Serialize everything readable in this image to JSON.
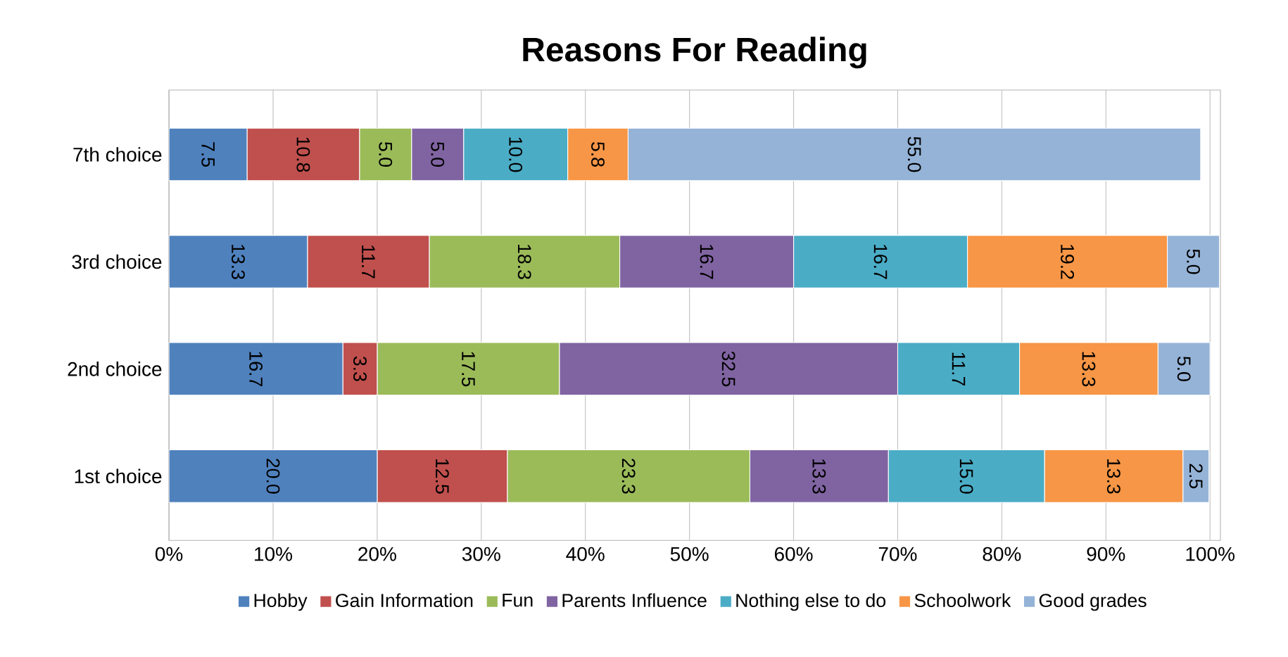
{
  "chart_data": {
    "type": "bar",
    "orientation": "horizontal",
    "stacked": true,
    "title": "Reasons For Reading",
    "categories": [
      "7th choice",
      "3rd choice",
      "2nd choice",
      "1st choice"
    ],
    "series": [
      {
        "name": "Hobby",
        "color": "#4f81bd",
        "values": [
          7.5,
          13.3,
          16.7,
          20.0
        ],
        "value_labels": [
          "7.5",
          "13.3",
          "16.7",
          "20.0"
        ]
      },
      {
        "name": "Gain Information",
        "color": "#c0504d",
        "values": [
          10.8,
          11.7,
          3.3,
          12.5
        ],
        "value_labels": [
          "10.8",
          "11.7",
          "3.3",
          "12.5"
        ]
      },
      {
        "name": "Fun",
        "color": "#9bbb59",
        "values": [
          5.0,
          18.3,
          17.5,
          23.3
        ],
        "value_labels": [
          "5.0",
          "18.3",
          "17.5",
          "23.3"
        ]
      },
      {
        "name": "Parents Influence",
        "color": "#8064a2",
        "values": [
          5.0,
          16.7,
          32.5,
          13.3
        ],
        "value_labels": [
          "5.0",
          "16.7",
          "32.5",
          "13.3"
        ]
      },
      {
        "name": "Nothing else to do",
        "color": "#4bacc6",
        "values": [
          10.0,
          16.7,
          11.7,
          15.0
        ],
        "value_labels": [
          "10.0",
          "16.7",
          "11.7",
          "15.0"
        ]
      },
      {
        "name": "Schoolwork",
        "color": "#f79646",
        "values": [
          5.8,
          19.2,
          13.3,
          13.3
        ],
        "value_labels": [
          "5.8",
          "19.2",
          "13.3",
          "13.3"
        ]
      },
      {
        "name": "Good grades",
        "color": "#95b3d7",
        "values": [
          55.0,
          5.0,
          5.0,
          2.5
        ],
        "value_labels": [
          "55.0",
          "5.0",
          "5.0",
          "2.5"
        ]
      }
    ],
    "xlim": [
      0,
      101
    ],
    "xticks": [
      {
        "value": 0,
        "label": "0%"
      },
      {
        "value": 10,
        "label": "10%"
      },
      {
        "value": 20,
        "label": "20%"
      },
      {
        "value": 30,
        "label": "30%"
      },
      {
        "value": 40,
        "label": "40%"
      },
      {
        "value": 50,
        "label": "50%"
      },
      {
        "value": 60,
        "label": "60%"
      },
      {
        "value": 70,
        "label": "70%"
      },
      {
        "value": 80,
        "label": "80%"
      },
      {
        "value": 90,
        "label": "90%"
      },
      {
        "value": 100,
        "label": "100%"
      }
    ],
    "legend": "bottom",
    "grid": "x"
  }
}
